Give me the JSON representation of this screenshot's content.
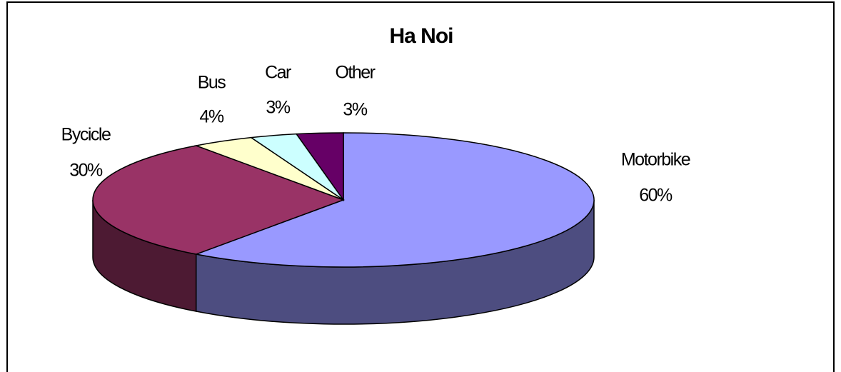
{
  "chart_data": {
    "type": "pie",
    "title": "Ha Noi",
    "categories": [
      "Motorbike",
      "Bycicle",
      "Bus",
      "Car",
      "Other"
    ],
    "values": [
      60,
      30,
      4,
      3,
      3
    ],
    "value_labels": [
      "60%",
      "30%",
      "4%",
      "3%",
      "3%"
    ],
    "colors": [
      "#9999ff",
      "#993366",
      "#ffffcc",
      "#ccffff",
      "#660066"
    ]
  }
}
